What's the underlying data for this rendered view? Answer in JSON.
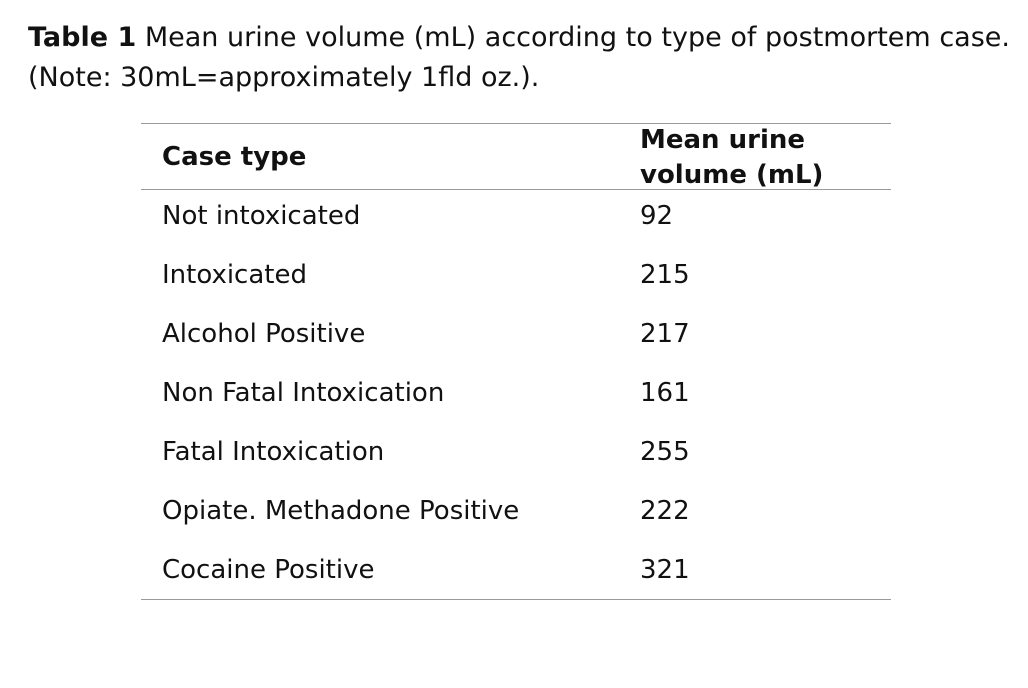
{
  "caption": {
    "label": "Table 1",
    "line1_words": [
      "Mean",
      "urine",
      "volume",
      "(mL)",
      "according",
      "to",
      "type",
      "of",
      "postmortem",
      "case."
    ],
    "line2": "(Note: 30mL=approximately 1fld oz.)."
  },
  "table": {
    "headers": {
      "case_type": "Case type",
      "mean_volume_line1": "Mean urine",
      "mean_volume_line2": "volume (mL)"
    },
    "rows": [
      {
        "case_type": "Not intoxicated",
        "mean_volume": "92"
      },
      {
        "case_type": "Intoxicated",
        "mean_volume": "215"
      },
      {
        "case_type": "Alcohol Positive",
        "mean_volume": "217"
      },
      {
        "case_type": "Non Fatal Intoxication",
        "mean_volume": "161"
      },
      {
        "case_type": "Fatal Intoxication",
        "mean_volume": "255"
      },
      {
        "case_type": "Opiate. Methadone Positive",
        "mean_volume": "222"
      },
      {
        "case_type": "Cocaine Positive",
        "mean_volume": "321"
      }
    ]
  }
}
